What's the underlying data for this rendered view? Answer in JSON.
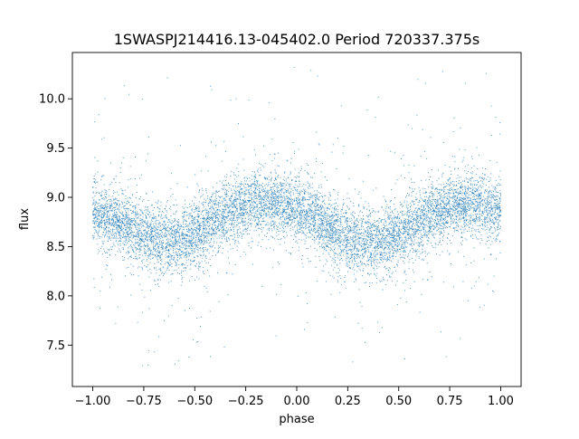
{
  "chart_data": {
    "type": "scatter",
    "title": "1SWASPJ214416.13-045402.0 Period 720337.375s",
    "xlabel": "phase",
    "ylabel": "flux",
    "xlim": [
      -1.1,
      1.1
    ],
    "ylim": [
      7.08,
      10.47
    ],
    "x_ticks": [
      -1.0,
      -0.75,
      -0.5,
      -0.25,
      0.0,
      0.25,
      0.5,
      0.75,
      1.0
    ],
    "x_tick_labels": [
      "−1.00",
      "−0.75",
      "−0.50",
      "−0.25",
      "0.00",
      "0.25",
      "0.50",
      "0.75",
      "1.00"
    ],
    "y_ticks": [
      7.5,
      8.0,
      8.5,
      9.0,
      9.5,
      10.0
    ],
    "y_tick_labels": [
      "7.5",
      "8.0",
      "8.5",
      "9.0",
      "9.5",
      "10.0"
    ],
    "grid": false,
    "legend": "none",
    "marker_color": "#1f77b4",
    "series": [
      {
        "phase_range": [
          -1.0,
          1.0
        ],
        "profile": {
          "phase": [
            -1.0,
            -0.9,
            -0.8,
            -0.7,
            -0.6,
            -0.5,
            -0.4,
            -0.3,
            -0.2,
            -0.1,
            0.0,
            0.1,
            0.2,
            0.3,
            0.4,
            0.5,
            0.6,
            0.7,
            0.8,
            0.9,
            1.0
          ],
          "mean_flux": [
            8.85,
            8.78,
            8.68,
            8.58,
            8.55,
            8.62,
            8.75,
            8.88,
            8.95,
            8.93,
            8.88,
            8.78,
            8.62,
            8.55,
            8.55,
            8.62,
            8.75,
            8.88,
            8.95,
            8.92,
            8.88
          ]
        },
        "core_spread": 0.16,
        "outlier_range": [
          7.25,
          10.32
        ]
      }
    ]
  }
}
